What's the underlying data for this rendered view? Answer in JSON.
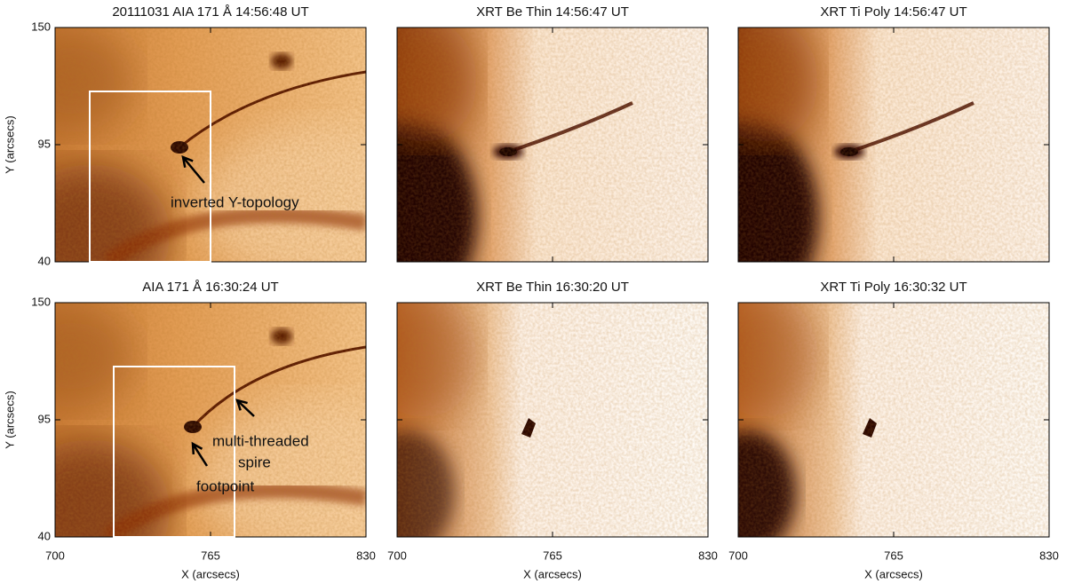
{
  "panels": [
    {
      "title": "20111031 AIA 171 Å 14:56:48 UT"
    },
    {
      "title": "XRT Be Thin 14:56:47 UT"
    },
    {
      "title": "XRT Ti Poly 14:56:47 UT"
    },
    {
      "title": "AIA 171 Å 16:30:24 UT"
    },
    {
      "title": "XRT Be Thin 16:30:20 UT"
    },
    {
      "title": "XRT Ti Poly 16:30:32 UT"
    }
  ],
  "x_axis": {
    "label": "X (arcsecs)",
    "ticks": [
      700,
      765,
      830
    ]
  },
  "y_axis": {
    "label": "Y (arcsecs)",
    "ticks": [
      150,
      95,
      40
    ]
  },
  "annotations": [
    "inverted Y-topology",
    "multi-threaded",
    "spire",
    "footpoint"
  ]
}
